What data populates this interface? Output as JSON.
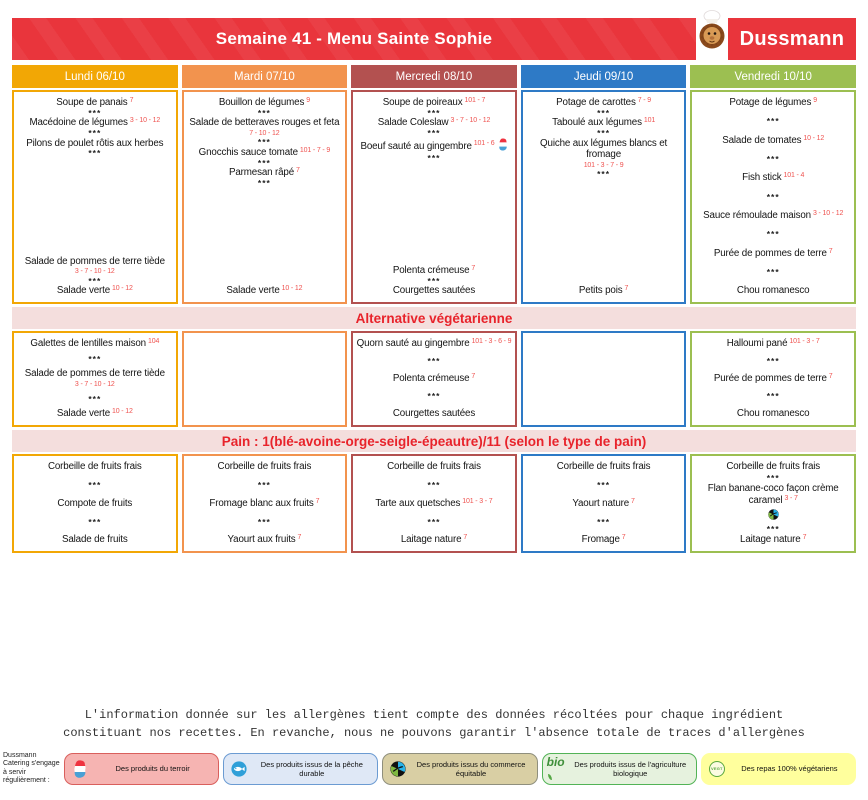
{
  "header": {
    "title": "Semaine 41 - Menu Sainte Sophie",
    "brand": "Dussmann",
    "banner_color": "#e9353c"
  },
  "sections": {
    "veg_title": "Alternative végétarienne",
    "pain_title": "Pain : 1(blé-avoine-orge-seigle-épeautre)/11 (selon le type de pain)"
  },
  "sep_label": "***",
  "days": [
    {
      "label": "Lundi 06/10",
      "color": "#f2a705",
      "main": [
        {
          "t": "Soupe de panais",
          "a": "7"
        },
        {
          "sep": true
        },
        {
          "t": "Macédoine de légumes",
          "a": "3 - 10 - 12"
        },
        {
          "sep": true
        },
        {
          "t": "Pilons de poulet rôtis aux herbes"
        },
        {
          "sep": true
        },
        {
          "gap": true
        },
        {
          "t": "Salade de pommes de terre tiède",
          "a2": "3 - 7 - 10 - 12"
        },
        {
          "sep": true
        },
        {
          "t": "Salade verte",
          "a": "10 - 12"
        }
      ],
      "veg": [
        {
          "t": "Galettes de lentilles maison",
          "a": "104"
        },
        {
          "sep": true
        },
        {
          "t": "Salade de pommes de terre tiède",
          "a2": "3 - 7 - 10 - 12"
        },
        {
          "sep": true
        },
        {
          "t": "Salade verte",
          "a": "10 - 12"
        }
      ],
      "dessert": [
        {
          "t": "Corbeille de fruits frais"
        },
        {
          "sep": true
        },
        {
          "t": "Compote de fruits"
        },
        {
          "sep": true
        },
        {
          "t": "Salade de fruits"
        }
      ]
    },
    {
      "label": "Mardi 07/10",
      "color": "#f2934e",
      "main": [
        {
          "t": "Bouillon de légumes",
          "a": "9"
        },
        {
          "sep": true
        },
        {
          "t": "Salade de betteraves rouges et feta",
          "a2": "7 - 10 - 12"
        },
        {
          "sep": true
        },
        {
          "t": "Gnocchis sauce tomate",
          "a": "101 - 7 - 9"
        },
        {
          "sep": true
        },
        {
          "t": "Parmesan râpé",
          "a": "7"
        },
        {
          "sep": true
        },
        {
          "gap": true
        },
        {
          "t": "Salade verte",
          "a": "10 - 12"
        }
      ],
      "veg": [],
      "dessert": [
        {
          "t": "Corbeille de fruits frais"
        },
        {
          "sep": true
        },
        {
          "t": "Fromage blanc aux fruits",
          "a": "7"
        },
        {
          "sep": true
        },
        {
          "t": "Yaourt aux fruits",
          "a": "7"
        }
      ]
    },
    {
      "label": "Mercredi 08/10",
      "color": "#b35150",
      "main": [
        {
          "t": "Soupe de poireaux",
          "a": "101 - 7"
        },
        {
          "sep": true
        },
        {
          "t": "Salade Coleslaw",
          "a": "3 - 7 - 10 - 12"
        },
        {
          "sep": true
        },
        {
          "t": "Boeuf sauté au gingembre",
          "a": "101 - 6",
          "icon": "terroir"
        },
        {
          "sep": true
        },
        {
          "gap": true
        },
        {
          "t": "Polenta crémeuse",
          "a": "7"
        },
        {
          "sep": true
        },
        {
          "t": "Courgettes sautées"
        }
      ],
      "veg": [
        {
          "t": "Quorn sauté au gingembre",
          "a": "101 - 3 - 6 - 9"
        },
        {
          "sep": true
        },
        {
          "t": "Polenta crémeuse",
          "a": "7"
        },
        {
          "sep": true
        },
        {
          "t": "Courgettes sautées"
        }
      ],
      "dessert": [
        {
          "t": "Corbeille de fruits frais"
        },
        {
          "sep": true
        },
        {
          "t": "Tarte aux quetsches",
          "a": "101 - 3 - 7"
        },
        {
          "sep": true
        },
        {
          "t": "Laitage nature",
          "a": "7"
        }
      ]
    },
    {
      "label": "Jeudi 09/10",
      "color": "#2e7ac6",
      "main": [
        {
          "t": "Potage de carottes",
          "a": "7 - 9"
        },
        {
          "sep": true
        },
        {
          "t": "Taboulé aux légumes",
          "a": "101"
        },
        {
          "sep": true
        },
        {
          "t": "Quiche aux légumes blancs et fromage",
          "a2": "101 - 3 - 7 - 9"
        },
        {
          "sep": true
        },
        {
          "gap": true
        },
        {
          "t": "Petits pois",
          "a": "7"
        }
      ],
      "veg": [],
      "dessert": [
        {
          "t": "Corbeille de fruits frais"
        },
        {
          "sep": true
        },
        {
          "t": "Yaourt nature",
          "a": "7"
        },
        {
          "sep": true
        },
        {
          "t": "Fromage",
          "a": "7"
        }
      ]
    },
    {
      "label": "Vendredi 10/10",
      "color": "#9cbf51",
      "main": [
        {
          "t": "Potage de légumes",
          "a": "9"
        },
        {
          "sep": true
        },
        {
          "t": "Salade de tomates",
          "a": "10 - 12"
        },
        {
          "sep": true
        },
        {
          "t": "Fish stick",
          "a": "101 - 4"
        },
        {
          "sep": true
        },
        {
          "t": "Sauce rémoulade maison",
          "a": "3 - 10 - 12"
        },
        {
          "sep": true
        },
        {
          "t": "Purée de pommes de terre",
          "a": "7"
        },
        {
          "sep": true
        },
        {
          "t": "Chou romanesco"
        }
      ],
      "veg": [
        {
          "t": "Halloumi pané",
          "a": "101 - 3 - 7"
        },
        {
          "sep": true
        },
        {
          "t": "Purée de pommes de terre",
          "a": "7"
        },
        {
          "sep": true
        },
        {
          "t": "Chou romanesco"
        }
      ],
      "dessert": [
        {
          "t": "Corbeille de fruits frais"
        },
        {
          "sep": true
        },
        {
          "t": "Flan banane-coco façon crème caramel",
          "a": "3 - 7"
        },
        {
          "icon_row": "fairtrade"
        },
        {
          "sep": true
        },
        {
          "t": "Laitage nature",
          "a": "7"
        }
      ]
    }
  ],
  "disclaimer": {
    "line1": "L'information donnée sur les allergènes tient compte des données récoltées pour chaque ingrédient",
    "line2": "constituant nos recettes. En revanche, nous ne pouvons garantir l'absence totale de traces d'allergènes"
  },
  "footer": {
    "intro": "Dussmann Catering s'engage à servir régulièrement :",
    "badges": [
      {
        "icon": "terroir",
        "label": "Des produits du terroir",
        "bg": "#f6b4b2",
        "border": "#d95f5c"
      },
      {
        "icon": "fish",
        "label": "Des produits issus de la pêche durable",
        "bg": "#dfe8f6",
        "border": "#6b9bd2"
      },
      {
        "icon": "fairtrade",
        "label": "Des produits issus du commerce équitable",
        "bg": "#d9cfa4",
        "border": "#8f8f7d"
      },
      {
        "icon": "bio",
        "label": "Des produits issus de l'agriculture biologique",
        "bg": "#e6f2de",
        "border": "#52b356"
      },
      {
        "icon": "vegt",
        "label": "Des repas 100% végétariens",
        "bg": "#ffff9d",
        "border": "#ffff9d"
      }
    ]
  }
}
